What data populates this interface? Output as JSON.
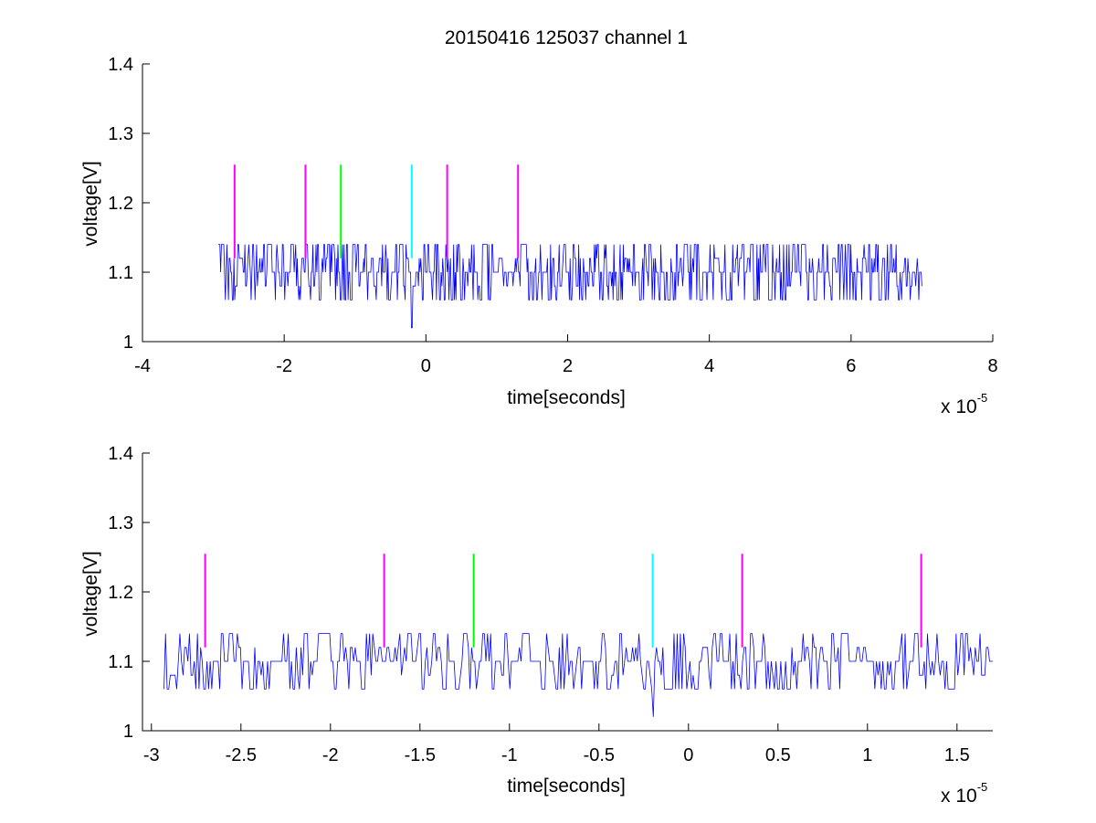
{
  "figure": {
    "title": "20150416 125037 channel 1"
  },
  "colors": {
    "signal": "#0000ff",
    "magenta": "#ff00ff",
    "green": "#00ff00",
    "cyan": "#00ffff",
    "axis": "#000000"
  },
  "chart_data": [
    {
      "type": "line",
      "title": "20150416 125037 channel 1",
      "xlabel": "time[seconds]",
      "ylabel": "voltage[V]",
      "x_multiplier": "x 10",
      "x_multiplier_exp": "-5",
      "xlim": [
        -4,
        8
      ],
      "ylim": [
        1,
        1.4
      ],
      "xticks": [
        -4,
        -2,
        0,
        2,
        4,
        6,
        8
      ],
      "xtick_labels": [
        "-4",
        "-2",
        "0",
        "2",
        "4",
        "6",
        "8"
      ],
      "yticks": [
        1,
        1.1,
        1.2,
        1.3,
        1.4
      ],
      "ytick_labels": [
        "1",
        "1.1",
        "1.2",
        "1.3",
        "1.4"
      ],
      "grid": false,
      "series": [
        {
          "x_range": [
            -2.93,
            7.0
          ],
          "baseline": 1.1,
          "levels": [
            1.06,
            1.08,
            1.1,
            1.12,
            1.14
          ],
          "dip": {
            "x": -0.2,
            "y": 1.02
          }
        }
      ],
      "markers": [
        {
          "x": -2.7,
          "y0": 1.12,
          "y1": 1.255,
          "color": "magenta"
        },
        {
          "x": -1.7,
          "y0": 1.12,
          "y1": 1.255,
          "color": "magenta"
        },
        {
          "x": -1.2,
          "y0": 1.12,
          "y1": 1.255,
          "color": "green"
        },
        {
          "x": -0.2,
          "y0": 1.12,
          "y1": 1.255,
          "color": "cyan"
        },
        {
          "x": 0.3,
          "y0": 1.12,
          "y1": 1.255,
          "color": "magenta"
        },
        {
          "x": 1.3,
          "y0": 1.12,
          "y1": 1.255,
          "color": "magenta"
        }
      ]
    },
    {
      "type": "line",
      "title": "",
      "xlabel": "time[seconds]",
      "ylabel": "voltage[V]",
      "x_multiplier": "x 10",
      "x_multiplier_exp": "-5",
      "xlim": [
        -3.05,
        1.7
      ],
      "ylim": [
        1,
        1.4
      ],
      "xticks": [
        -3,
        -2.5,
        -2,
        -1.5,
        -1,
        -0.5,
        0,
        0.5,
        1,
        1.5
      ],
      "xtick_labels": [
        "-3",
        "-2.5",
        "-2",
        "-1.5",
        "-1",
        "-0.5",
        "0",
        "0.5",
        "1",
        "1.5"
      ],
      "yticks": [
        1,
        1.1,
        1.2,
        1.3,
        1.4
      ],
      "ytick_labels": [
        "1",
        "1.1",
        "1.2",
        "1.3",
        "1.4"
      ],
      "grid": false,
      "series": [
        {
          "x_range": [
            -2.93,
            1.7
          ],
          "baseline": 1.1,
          "levels": [
            1.06,
            1.08,
            1.1,
            1.12,
            1.14
          ],
          "dip": {
            "x": -0.2,
            "y": 1.02
          }
        }
      ],
      "markers": [
        {
          "x": -2.7,
          "y0": 1.12,
          "y1": 1.255,
          "color": "magenta"
        },
        {
          "x": -1.7,
          "y0": 1.12,
          "y1": 1.255,
          "color": "magenta"
        },
        {
          "x": -1.2,
          "y0": 1.12,
          "y1": 1.255,
          "color": "green"
        },
        {
          "x": -0.2,
          "y0": 1.12,
          "y1": 1.255,
          "color": "cyan"
        },
        {
          "x": 0.3,
          "y0": 1.12,
          "y1": 1.255,
          "color": "magenta"
        },
        {
          "x": 1.3,
          "y0": 1.12,
          "y1": 1.255,
          "color": "magenta"
        }
      ]
    }
  ]
}
